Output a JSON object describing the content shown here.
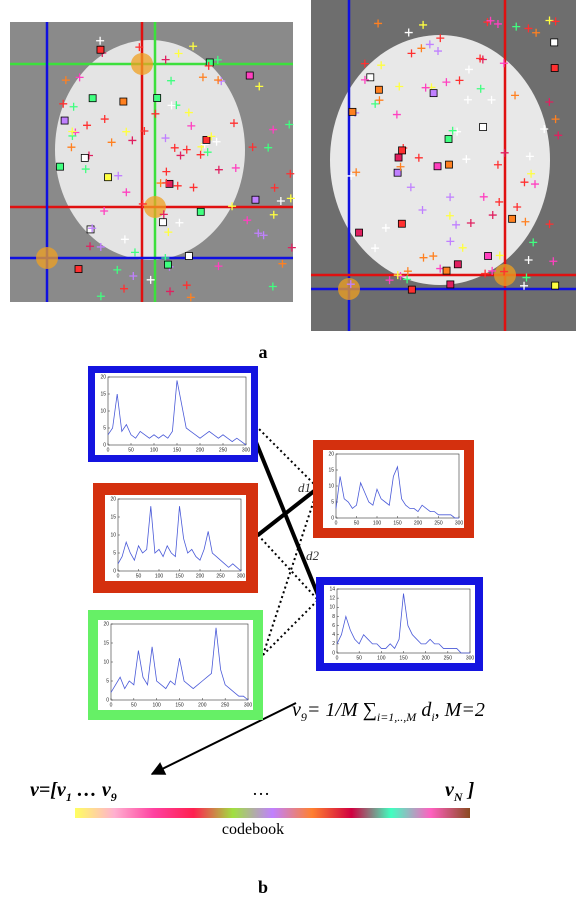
{
  "panel_a": {
    "label": "a"
  },
  "panel_b": {
    "label": "b",
    "histograms": [
      {
        "type": "line",
        "frame_color": "#1414e0",
        "line_color": "#4a5ad8",
        "xlim": [
          0,
          300
        ],
        "ylim": [
          0,
          20
        ],
        "xticks": [
          0,
          50,
          100,
          150,
          200,
          250,
          300
        ],
        "yticks": [
          0,
          5,
          10,
          15,
          20
        ],
        "x": [
          0,
          10,
          20,
          30,
          40,
          50,
          60,
          70,
          80,
          90,
          100,
          110,
          120,
          130,
          140,
          150,
          160,
          170,
          180,
          190,
          200,
          210,
          220,
          230,
          240,
          250,
          260,
          270,
          280,
          290,
          300
        ],
        "values": [
          3,
          5,
          15,
          4,
          6,
          3,
          2,
          4,
          3,
          2,
          3,
          2,
          3,
          2,
          4,
          19,
          12,
          5,
          4,
          3,
          2,
          3,
          4,
          3,
          2,
          3,
          2,
          1,
          2,
          1,
          0
        ]
      },
      {
        "type": "line",
        "frame_color": "#d4300e",
        "line_color": "#4a5ad8",
        "xlim": [
          0,
          300
        ],
        "ylim": [
          0,
          20
        ],
        "xticks": [
          0,
          50,
          100,
          150,
          200,
          250,
          300
        ],
        "yticks": [
          0,
          5,
          10,
          15,
          20
        ],
        "x": [
          0,
          10,
          20,
          30,
          40,
          50,
          60,
          70,
          80,
          90,
          100,
          110,
          120,
          130,
          140,
          150,
          160,
          170,
          180,
          190,
          200,
          210,
          220,
          230,
          240,
          250,
          260,
          270,
          280,
          290,
          300
        ],
        "values": [
          2,
          4,
          8,
          5,
          3,
          7,
          5,
          6,
          18,
          5,
          6,
          4,
          7,
          5,
          4,
          18,
          9,
          5,
          6,
          4,
          3,
          6,
          11,
          5,
          4,
          3,
          2,
          1,
          2,
          1,
          0
        ]
      },
      {
        "type": "line",
        "frame_color": "#66f066",
        "line_color": "#4a5ad8",
        "xlim": [
          0,
          300
        ],
        "ylim": [
          0,
          20
        ],
        "xticks": [
          0,
          50,
          100,
          150,
          200,
          250,
          300
        ],
        "yticks": [
          0,
          5,
          10,
          15,
          20
        ],
        "x": [
          0,
          10,
          20,
          30,
          40,
          50,
          60,
          70,
          80,
          90,
          100,
          110,
          120,
          130,
          140,
          150,
          160,
          170,
          180,
          190,
          200,
          210,
          220,
          230,
          240,
          250,
          260,
          270,
          280,
          290,
          300
        ],
        "values": [
          2,
          4,
          6,
          3,
          5,
          4,
          13,
          6,
          4,
          14,
          5,
          4,
          3,
          5,
          4,
          11,
          5,
          4,
          3,
          4,
          5,
          6,
          7,
          19,
          8,
          4,
          3,
          2,
          1,
          1,
          0
        ]
      },
      {
        "type": "line",
        "frame_color": "#d4300e",
        "line_color": "#4a5ad8",
        "xlim": [
          0,
          300
        ],
        "ylim": [
          0,
          20
        ],
        "xticks": [
          0,
          50,
          100,
          150,
          200,
          250,
          300
        ],
        "yticks": [
          0,
          5,
          10,
          15,
          20
        ],
        "x": [
          0,
          10,
          20,
          30,
          40,
          50,
          60,
          70,
          80,
          90,
          100,
          110,
          120,
          130,
          140,
          150,
          160,
          170,
          180,
          190,
          200,
          210,
          220,
          230,
          240,
          250,
          260,
          270,
          280,
          290,
          300
        ],
        "values": [
          3,
          13,
          6,
          5,
          3,
          4,
          11,
          8,
          5,
          4,
          9,
          6,
          5,
          4,
          13,
          16,
          6,
          4,
          3,
          3,
          2,
          4,
          3,
          2,
          2,
          1,
          1,
          1,
          1,
          0,
          0
        ]
      },
      {
        "type": "line",
        "frame_color": "#1414e0",
        "line_color": "#4a5ad8",
        "xlim": [
          0,
          300
        ],
        "ylim": [
          0,
          14
        ],
        "xticks": [
          0,
          50,
          100,
          150,
          200,
          250,
          300
        ],
        "yticks": [
          0,
          2,
          4,
          6,
          8,
          10,
          12,
          14
        ],
        "x": [
          0,
          10,
          20,
          30,
          40,
          50,
          60,
          70,
          80,
          90,
          100,
          110,
          120,
          130,
          140,
          150,
          160,
          170,
          180,
          190,
          200,
          210,
          220,
          230,
          240,
          250,
          260,
          270,
          280,
          290,
          300
        ],
        "values": [
          2,
          4,
          8,
          5,
          3,
          2,
          4,
          3,
          2,
          2,
          1,
          1,
          2,
          1,
          3,
          13,
          6,
          4,
          3,
          2,
          2,
          3,
          2,
          2,
          1,
          1,
          1,
          1,
          0,
          0,
          0
        ]
      }
    ],
    "d1": "d1",
    "d2": "d2",
    "formula": [
      {
        "text": "v",
        "sub": false
      },
      {
        "text": "9",
        "sub": true
      },
      {
        "text": "= 1/M ∑",
        "sub": false
      },
      {
        "text": "i=1,..,M",
        "sub": true
      },
      {
        "text": " d",
        "sub": false
      },
      {
        "text": "i",
        "sub": true
      },
      {
        "text": ", M=2",
        "sub": false
      }
    ],
    "vector_start": [
      {
        "text": "v=[v",
        "sub": false
      },
      {
        "text": "1",
        "sub": true
      },
      {
        "text": " … v",
        "sub": false
      },
      {
        "text": "9",
        "sub": true
      }
    ],
    "vector_dots": "…",
    "vector_end": [
      {
        "text": "v",
        "sub": false
      },
      {
        "text": "N",
        "sub": true
      },
      {
        "text": " ]",
        "sub": false
      }
    ],
    "codebook": "codebook"
  }
}
